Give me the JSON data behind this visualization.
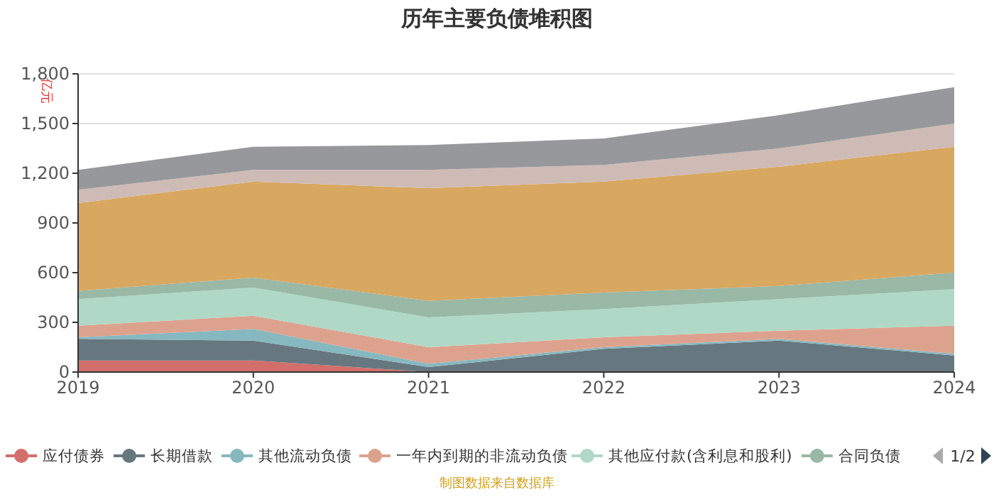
{
  "chart_data": {
    "type": "area",
    "title": "历年主要负债堆积图",
    "ylabel": "亿元",
    "stacked": true,
    "categories": [
      "2019",
      "2020",
      "2021",
      "2022",
      "2023",
      "2024"
    ],
    "ylim": [
      0,
      1800
    ],
    "yticks": [
      0,
      {
        "value": 300,
        "label": "300"
      },
      {
        "value": 600,
        "label": "600"
      },
      {
        "value": 900,
        "label": "900"
      },
      {
        "value": 1200,
        "label": "1,200"
      },
      {
        "value": 1500,
        "label": "1,500"
      },
      {
        "value": 1800,
        "label": "1,800"
      }
    ],
    "grid": "y",
    "legend": "bottom",
    "series": [
      {
        "name": "应付债券",
        "color": "#d36f6b",
        "values": [
          70,
          70,
          0,
          0,
          0,
          0
        ]
      },
      {
        "name": "长期借款",
        "color": "#67777f",
        "values": [
          130,
          120,
          30,
          140,
          190,
          100
        ]
      },
      {
        "name": "其他流动负债",
        "color": "#86b8c0",
        "values": [
          10,
          70,
          20,
          10,
          10,
          10
        ]
      },
      {
        "name": "一年内到期的非流动负债",
        "color": "#dda28e",
        "values": [
          70,
          80,
          100,
          60,
          50,
          170
        ]
      },
      {
        "name": "其他应付款(含利息和股利)",
        "color": "#b0d8c6",
        "values": [
          160,
          170,
          180,
          170,
          190,
          220
        ]
      },
      {
        "name": "合同负债",
        "color": "#99b8a6",
        "values": [
          50,
          60,
          100,
          100,
          80,
          100
        ]
      },
      {
        "color": "#d8a760",
        "values": [
          530,
          580,
          680,
          670,
          720,
          760
        ]
      },
      {
        "color": "#cfbbb6",
        "values": [
          80,
          70,
          110,
          100,
          110,
          140
        ]
      },
      {
        "color": "#97989b",
        "values": [
          120,
          140,
          150,
          160,
          200,
          220
        ]
      }
    ],
    "annotations": [
      "制图数据来自数据库",
      "1/2"
    ]
  }
}
